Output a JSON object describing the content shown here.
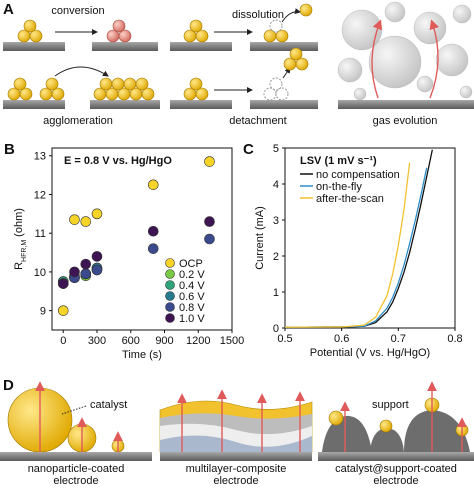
{
  "panels": {
    "A": {
      "label": "A",
      "conversion": "conversion",
      "dissolution": "dissolution",
      "agglomeration": "agglomeration",
      "detachment": "detachment",
      "gas_evolution": "gas evolution"
    },
    "D": {
      "label": "D",
      "catalyst": "catalyst",
      "support": "support",
      "nanoparticle": [
        "nanoparticle-coated",
        "electrode"
      ],
      "multilayer": [
        "multilayer-composite",
        "electrode"
      ],
      "supported": [
        "catalyst@support-coated",
        "electrode"
      ]
    }
  },
  "chart_data": [
    {
      "type": "scatter",
      "panel_label": "B",
      "annotation": "E = 0.8 V vs. Hg/HgO",
      "x_label": "Time (s)",
      "y_label": "R",
      "y_label_subscript": "HFR,M",
      "y_label_unit": "(ohm)",
      "x": [
        0,
        100,
        200,
        300,
        800,
        1300
      ],
      "series": [
        {
          "name": "OCP",
          "color": "#f5d327",
          "values": [
            9.0,
            11.35,
            11.3,
            11.5,
            12.25,
            12.85
          ]
        },
        {
          "name": "0.2 V",
          "color": "#7ac943",
          "values": [
            9.75,
            9.85,
            9.9,
            10.1,
            null,
            null
          ]
        },
        {
          "name": "0.4 V",
          "color": "#2fa37a",
          "values": [
            9.75,
            9.9,
            9.95,
            10.05,
            null,
            null
          ]
        },
        {
          "name": "0.6 V",
          "color": "#287a8e",
          "values": [
            9.7,
            9.85,
            9.95,
            10.1,
            null,
            null
          ]
        },
        {
          "name": "0.8 V",
          "color": "#3b4a8c",
          "values": [
            9.7,
            9.85,
            9.95,
            10.05,
            10.6,
            10.85
          ]
        },
        {
          "name": "1.0 V",
          "color": "#3d1552",
          "values": [
            9.7,
            10.0,
            10.2,
            10.4,
            11.05,
            11.3
          ]
        }
      ],
      "xlim": [
        -100,
        1500
      ],
      "xticks": [
        0,
        300,
        600,
        900,
        1200,
        1500
      ],
      "ylim": [
        8.5,
        13.2
      ],
      "yticks": [
        9,
        10,
        11,
        12,
        13
      ],
      "legend": "lower right"
    },
    {
      "type": "line",
      "panel_label": "C",
      "legend_title": "LSV (1 mV s⁻¹)",
      "x_label": "Potential (V vs. Hg/HgO)",
      "y_label": "Current (mA)",
      "x": [
        0.5,
        0.6,
        0.64,
        0.66,
        0.68,
        0.69,
        0.7,
        0.71,
        0.72,
        0.73,
        0.74,
        0.75,
        0.76
      ],
      "series": [
        {
          "name": "no compensation",
          "color": "#111111",
          "values": [
            0.02,
            0.03,
            0.05,
            0.15,
            0.45,
            0.72,
            1.1,
            1.55,
            2.1,
            2.75,
            3.45,
            4.2,
            4.95
          ]
        },
        {
          "name": "on-the-fly",
          "color": "#2f8fc9",
          "values": [
            0.02,
            0.03,
            0.05,
            0.2,
            0.55,
            0.85,
            1.25,
            1.75,
            2.35,
            3.0,
            3.7,
            4.45,
            null
          ]
        },
        {
          "name": "after-the-scan",
          "color": "#f2c12e",
          "values": [
            0.02,
            0.03,
            0.08,
            0.3,
            0.9,
            1.5,
            2.3,
            3.3,
            4.6,
            null,
            null,
            null,
            null
          ]
        }
      ],
      "xlim": [
        0.5,
        0.8
      ],
      "xticks": [
        0.5,
        0.6,
        0.7,
        0.8
      ],
      "ylim": [
        0,
        5
      ],
      "yticks": [
        0,
        1,
        2,
        3,
        4,
        5
      ],
      "legend": "upper left"
    }
  ]
}
